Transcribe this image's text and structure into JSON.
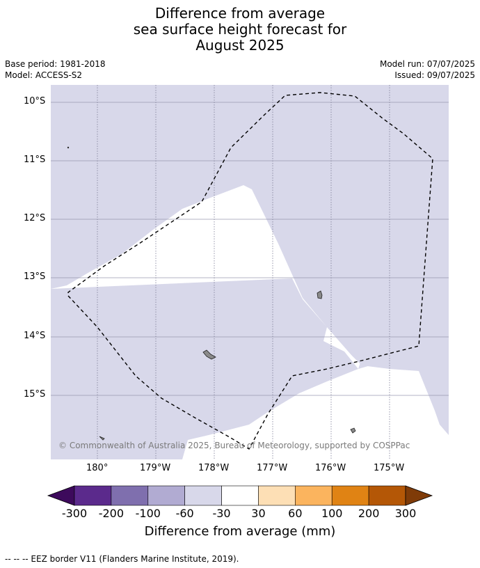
{
  "title": {
    "line1": "Difference from average",
    "line2": "sea surface height forecast for",
    "line3": "August 2025"
  },
  "meta": {
    "base_period": "Base period: 1981-2018",
    "model": "Model: ACCESS-S2",
    "model_run": "Model run: 07/07/2025",
    "issued": "Issued: 09/07/2025"
  },
  "map": {
    "lat_labels": [
      "10°S",
      "11°S",
      "12°S",
      "13°S",
      "14°S",
      "15°S"
    ],
    "lon_labels": [
      "180°",
      "179°W",
      "178°W",
      "177°W",
      "176°W",
      "175°W"
    ],
    "copyright": "© Commonwealth of Australia 2025, Bureau of Meteorology, supported by COSPPac",
    "ocean_color": "#d8d8ea",
    "neutral_color": "#ffffff"
  },
  "colorbar": {
    "labels": [
      "-300",
      "-200",
      "-100",
      "-60",
      "-30",
      "30",
      "60",
      "100",
      "200",
      "300"
    ],
    "colors": [
      "#5b2a8c",
      "#7f6fae",
      "#b1abd2",
      "#d8d8ea",
      "#ffffff",
      "#fddfb5",
      "#fbb45e",
      "#e08314",
      "#b45706"
    ],
    "under_color": "#3d0a5c",
    "over_color": "#7f3b08",
    "title": "Difference from average (mm)"
  },
  "footnote": "--  --  -- EEZ border V11 (Flanders Marine Institute, 2019)."
}
